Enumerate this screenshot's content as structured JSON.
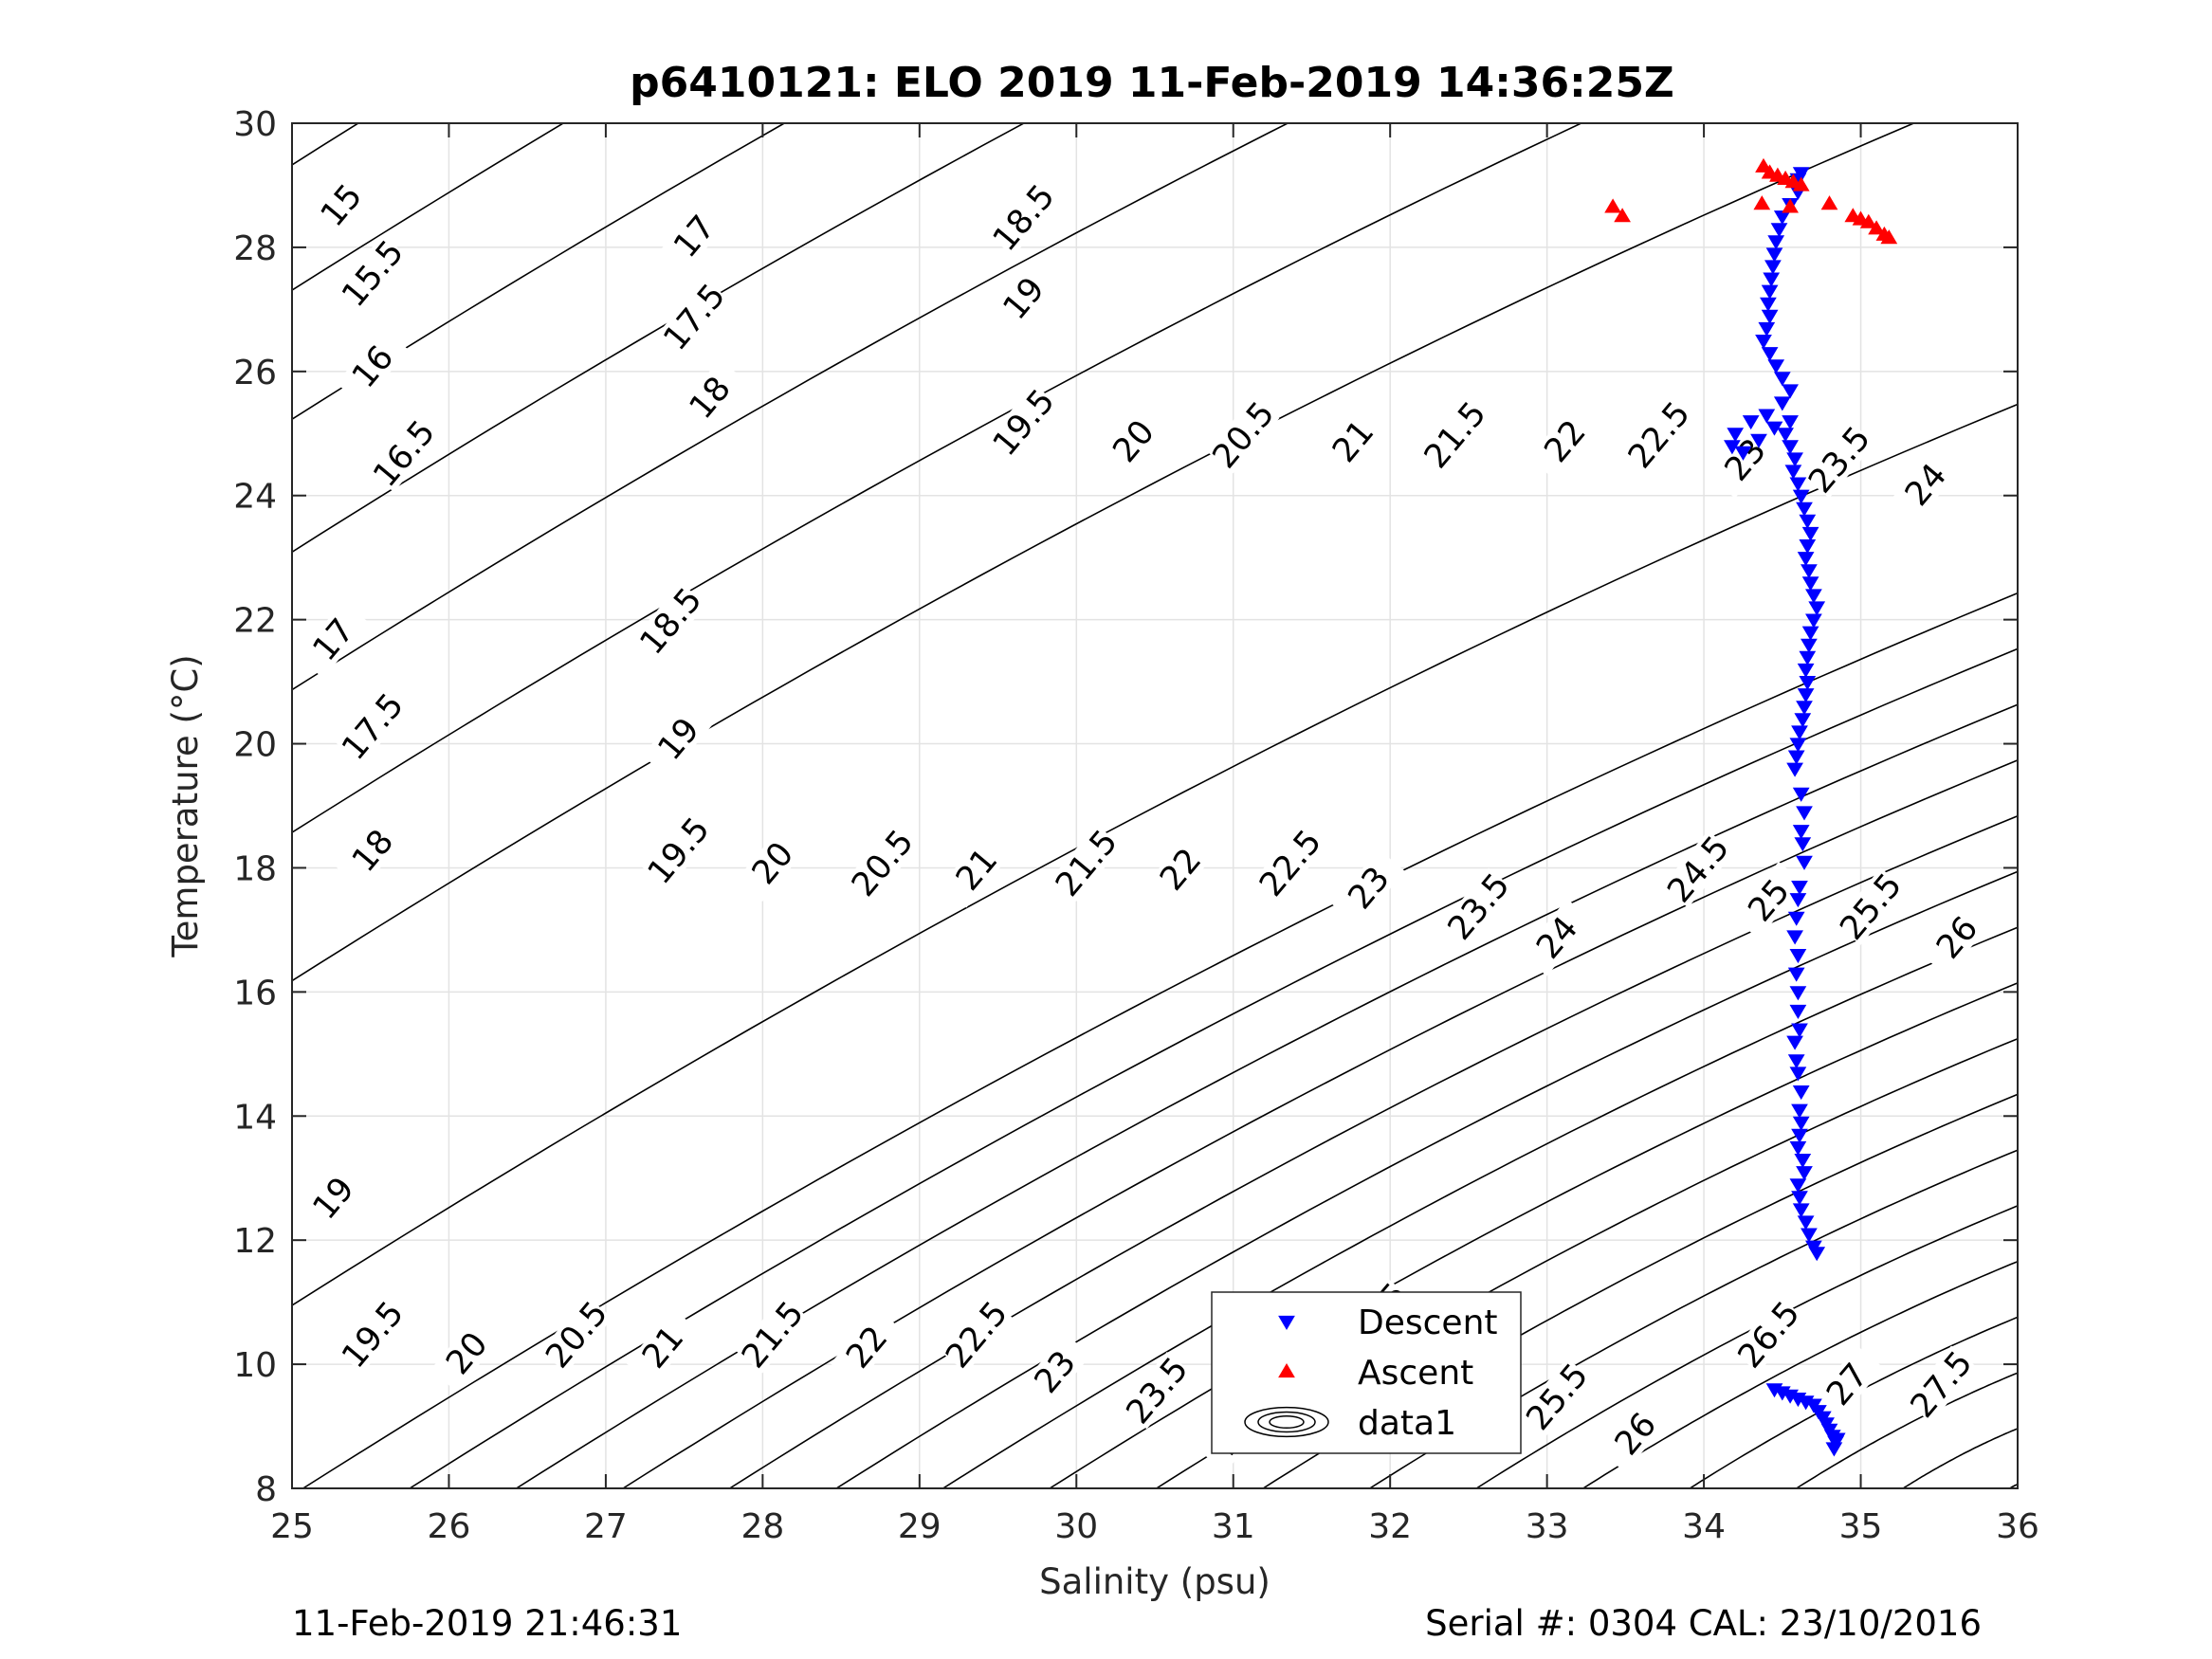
{
  "chart_data": {
    "type": "scatter",
    "title": "p6410121: ELO 2019 11-Feb-2019 14:36:25Z",
    "xlabel": "Salinity (psu)",
    "ylabel": "Temperature (°C)",
    "xlim": [
      25,
      36
    ],
    "ylim": [
      8,
      30
    ],
    "xticks": [
      "25",
      "26",
      "27",
      "28",
      "29",
      "30",
      "31",
      "32",
      "33",
      "34",
      "35",
      "36"
    ],
    "yticks": [
      "8",
      "10",
      "12",
      "14",
      "16",
      "18",
      "20",
      "22",
      "24",
      "26",
      "28",
      "30"
    ],
    "grid": true,
    "legend_placement": "bottom-center",
    "footer_left": "11-Feb-2019 21:46:31",
    "footer_right": "Serial #: 0304  CAL: 23/10/2016",
    "density_contours": {
      "name": "data1",
      "color": "#000000",
      "label_angle": -50,
      "lines": [
        {
          "value": 15,
          "x0": 25.0,
          "y0": 29.33,
          "xend": 36,
          "label_at": [
            25.35,
            28.6
          ]
        },
        {
          "value": 15.5,
          "x0": 25.0,
          "y0": 27.31,
          "xend": 36,
          "label_at": [
            25.55,
            27.5
          ]
        },
        {
          "value": 16,
          "x0": 25.0,
          "y0": 25.23,
          "xend": 36,
          "label_at": [
            25.55,
            26.0
          ]
        },
        {
          "value": 16.5,
          "x0": 25.0,
          "y0": 23.09,
          "xend": 36,
          "label_at": [
            25.75,
            24.6
          ]
        },
        {
          "value": 17,
          "x0": 25.0,
          "y0": 20.87,
          "xend": 36,
          "label_at": [
            25.3,
            21.6
          ]
        },
        {
          "value": 17.5,
          "x0": 25.0,
          "y0": 18.57,
          "xend": 36,
          "label_at": [
            25.55,
            20.2
          ]
        },
        {
          "value": 18,
          "x0": 25.0,
          "y0": 16.18,
          "xend": 36,
          "label_at": [
            25.55,
            18.2
          ]
        },
        {
          "value": 19,
          "x0": 25.0,
          "y0": 10.95,
          "xend": 36,
          "label_at": [
            25.3,
            12.6
          ]
        },
        {
          "value": 19.5,
          "x0": 25.07,
          "y0": 8.0,
          "xend": 36,
          "label_at": [
            25.55,
            10.4
          ]
        },
        {
          "value": 20,
          "x0": 25.75,
          "y0": 8.0,
          "xend": 36,
          "label_at": [
            26.15,
            10.1
          ]
        },
        {
          "value": 20.5,
          "x0": 26.43,
          "y0": 8.0,
          "xend": 36,
          "label_at": [
            26.85,
            10.4
          ]
        },
        {
          "value": 21,
          "x0": 27.11,
          "y0": 8.0,
          "xend": 36,
          "label_at": [
            27.4,
            10.2
          ]
        },
        {
          "value": 21.5,
          "x0": 27.79,
          "y0": 8.0,
          "xend": 36,
          "label_at": [
            28.1,
            10.4
          ]
        },
        {
          "value": 22,
          "x0": 28.47,
          "y0": 8.0,
          "xend": 36,
          "label_at": [
            28.7,
            10.2
          ]
        },
        {
          "value": 22.5,
          "x0": 29.15,
          "y0": 8.0,
          "xend": 36,
          "label_at": [
            29.4,
            10.4
          ]
        },
        {
          "value": 23,
          "x0": 29.83,
          "y0": 8.0,
          "xend": 36,
          "label_at": [
            29.9,
            9.8
          ]
        },
        {
          "value": 23.5,
          "x0": 30.51,
          "y0": 8.0,
          "xend": 36,
          "label_at": [
            30.55,
            9.5
          ]
        },
        {
          "value": 24,
          "x0": 31.19,
          "y0": 8.0,
          "xend": 36,
          "label_at": [
            31.05,
            8.8
          ]
        },
        {
          "value": 24.5,
          "x0": 31.87,
          "y0": 8.0,
          "xend": 36,
          "label_at": [
            31.95,
            10.7
          ]
        },
        {
          "value": 25,
          "x0": 32.55,
          "y0": 8.0,
          "xend": 36,
          "label_at": [
            32.45,
            9.8
          ]
        },
        {
          "value": 25.5,
          "x0": 33.23,
          "y0": 8.0,
          "xend": 36,
          "label_at": [
            33.1,
            9.4
          ]
        },
        {
          "value": 26,
          "x0": 33.91,
          "y0": 8.0,
          "xend": 36,
          "label_at": [
            33.6,
            8.8
          ]
        },
        {
          "value": 26.5,
          "x0": 34.59,
          "y0": 8.0,
          "xend": 36,
          "label_at": [
            34.45,
            10.4
          ]
        },
        {
          "value": 27,
          "x0": 35.27,
          "y0": 8.0,
          "xend": 36,
          "label_at": [
            34.95,
            9.6
          ]
        },
        {
          "value": 27.5,
          "x0": 35.95,
          "y0": 8.0,
          "xend": 36,
          "label_at": [
            35.55,
            9.6
          ]
        }
      ],
      "extra_labels": [
        {
          "text": "17",
          "at": [
            27.6,
            28.1
          ]
        },
        {
          "text": "17.5",
          "at": [
            27.6,
            26.8
          ]
        },
        {
          "text": "18",
          "at": [
            27.7,
            25.5
          ]
        },
        {
          "text": "18.5",
          "at": [
            29.7,
            28.4
          ]
        },
        {
          "text": "19",
          "at": [
            29.7,
            27.1
          ]
        },
        {
          "text": "19.5",
          "at": [
            29.7,
            25.1
          ]
        },
        {
          "text": "20",
          "at": [
            30.4,
            24.8
          ]
        },
        {
          "text": "20.5",
          "at": [
            31.1,
            24.9
          ]
        },
        {
          "text": "21",
          "at": [
            31.8,
            24.8
          ]
        },
        {
          "text": "21.5",
          "at": [
            32.45,
            24.9
          ]
        },
        {
          "text": "22",
          "at": [
            33.15,
            24.8
          ]
        },
        {
          "text": "22.5",
          "at": [
            33.75,
            24.9
          ]
        },
        {
          "text": "23",
          "at": [
            34.3,
            24.5
          ]
        },
        {
          "text": "23.5",
          "at": [
            34.9,
            24.5
          ]
        },
        {
          "text": "24",
          "at": [
            35.45,
            24.1
          ]
        },
        {
          "text": "18.5",
          "at": [
            27.45,
            21.9
          ]
        },
        {
          "text": "19",
          "at": [
            27.5,
            20.0
          ]
        },
        {
          "text": "19.5",
          "at": [
            27.5,
            18.2
          ]
        },
        {
          "text": "20",
          "at": [
            28.1,
            18.0
          ]
        },
        {
          "text": "20.5",
          "at": [
            28.8,
            18.0
          ]
        },
        {
          "text": "21",
          "at": [
            29.4,
            17.9
          ]
        },
        {
          "text": "21.5",
          "at": [
            30.1,
            18.0
          ]
        },
        {
          "text": "22",
          "at": [
            30.7,
            17.9
          ]
        },
        {
          "text": "22.5",
          "at": [
            31.4,
            18.0
          ]
        },
        {
          "text": "23",
          "at": [
            31.9,
            17.6
          ]
        },
        {
          "text": "23.5",
          "at": [
            32.6,
            17.3
          ]
        },
        {
          "text": "24",
          "at": [
            33.1,
            16.8
          ]
        },
        {
          "text": "24.5",
          "at": [
            34.0,
            17.9
          ]
        },
        {
          "text": "25",
          "at": [
            34.45,
            17.4
          ]
        },
        {
          "text": "25.5",
          "at": [
            35.1,
            17.3
          ]
        },
        {
          "text": "26",
          "at": [
            35.65,
            16.8
          ]
        }
      ]
    },
    "series": [
      {
        "name": "Descent",
        "color": "#0000ff",
        "marker": "triangle-down",
        "points": [
          [
            34.62,
            29.2
          ],
          [
            34.6,
            29.1
          ],
          [
            34.58,
            29.0
          ],
          [
            34.6,
            28.9
          ],
          [
            34.55,
            28.7
          ],
          [
            34.5,
            28.5
          ],
          [
            34.48,
            28.3
          ],
          [
            34.46,
            28.1
          ],
          [
            34.45,
            27.9
          ],
          [
            34.44,
            27.7
          ],
          [
            34.43,
            27.5
          ],
          [
            34.42,
            27.3
          ],
          [
            34.41,
            27.1
          ],
          [
            34.42,
            26.9
          ],
          [
            34.4,
            26.7
          ],
          [
            34.38,
            26.5
          ],
          [
            34.42,
            26.3
          ],
          [
            34.46,
            26.1
          ],
          [
            34.5,
            25.9
          ],
          [
            34.55,
            25.7
          ],
          [
            34.5,
            25.5
          ],
          [
            34.4,
            25.3
          ],
          [
            34.3,
            25.2
          ],
          [
            34.2,
            25.0
          ],
          [
            34.18,
            24.8
          ],
          [
            34.25,
            24.7
          ],
          [
            34.35,
            24.9
          ],
          [
            34.45,
            25.1
          ],
          [
            34.55,
            25.2
          ],
          [
            34.52,
            25.0
          ],
          [
            34.55,
            24.8
          ],
          [
            34.58,
            24.6
          ],
          [
            34.57,
            24.4
          ],
          [
            34.6,
            24.2
          ],
          [
            34.62,
            24.0
          ],
          [
            34.64,
            23.8
          ],
          [
            34.66,
            23.6
          ],
          [
            34.68,
            23.4
          ],
          [
            34.66,
            23.2
          ],
          [
            34.65,
            23.0
          ],
          [
            34.67,
            22.8
          ],
          [
            34.68,
            22.6
          ],
          [
            34.7,
            22.4
          ],
          [
            34.72,
            22.2
          ],
          [
            34.7,
            22.0
          ],
          [
            34.68,
            21.8
          ],
          [
            34.67,
            21.6
          ],
          [
            34.66,
            21.4
          ],
          [
            34.65,
            21.2
          ],
          [
            34.66,
            21.0
          ],
          [
            34.65,
            20.8
          ],
          [
            34.64,
            20.6
          ],
          [
            34.63,
            20.4
          ],
          [
            34.61,
            20.2
          ],
          [
            34.6,
            20.0
          ],
          [
            34.59,
            19.8
          ],
          [
            34.58,
            19.6
          ],
          [
            34.62,
            19.2
          ],
          [
            34.64,
            18.9
          ],
          [
            34.62,
            18.6
          ],
          [
            34.63,
            18.4
          ],
          [
            34.64,
            18.1
          ],
          [
            34.61,
            17.7
          ],
          [
            34.6,
            17.5
          ],
          [
            34.59,
            17.2
          ],
          [
            34.58,
            16.9
          ],
          [
            34.6,
            16.6
          ],
          [
            34.59,
            16.3
          ],
          [
            34.6,
            16.0
          ],
          [
            34.6,
            15.7
          ],
          [
            34.61,
            15.4
          ],
          [
            34.58,
            15.2
          ],
          [
            34.59,
            14.9
          ],
          [
            34.6,
            14.7
          ],
          [
            34.62,
            14.4
          ],
          [
            34.61,
            14.1
          ],
          [
            34.62,
            13.9
          ],
          [
            34.61,
            13.7
          ],
          [
            34.6,
            13.5
          ],
          [
            34.63,
            13.3
          ],
          [
            34.64,
            13.1
          ],
          [
            34.6,
            12.9
          ],
          [
            34.61,
            12.7
          ],
          [
            34.62,
            12.5
          ],
          [
            34.65,
            12.3
          ],
          [
            34.67,
            12.1
          ],
          [
            34.7,
            11.9
          ],
          [
            34.72,
            11.8
          ],
          [
            34.45,
            9.6
          ],
          [
            34.5,
            9.55
          ],
          [
            34.55,
            9.5
          ],
          [
            34.6,
            9.45
          ],
          [
            34.65,
            9.4
          ],
          [
            34.7,
            9.35
          ],
          [
            34.73,
            9.25
          ],
          [
            34.76,
            9.15
          ],
          [
            34.78,
            9.05
          ],
          [
            34.8,
            8.95
          ],
          [
            34.82,
            8.85
          ],
          [
            34.84,
            8.75
          ],
          [
            34.83,
            8.65
          ],
          [
            34.85,
            8.8
          ]
        ]
      },
      {
        "name": "Ascent",
        "color": "#ff0000",
        "marker": "triangle-up",
        "points": [
          [
            34.38,
            29.3
          ],
          [
            34.42,
            29.2
          ],
          [
            34.47,
            29.15
          ],
          [
            34.52,
            29.1
          ],
          [
            34.57,
            29.05
          ],
          [
            34.62,
            29.0
          ],
          [
            34.37,
            28.7
          ],
          [
            34.55,
            28.65
          ],
          [
            34.8,
            28.7
          ],
          [
            33.42,
            28.65
          ],
          [
            33.48,
            28.5
          ],
          [
            34.95,
            28.5
          ],
          [
            35.0,
            28.45
          ],
          [
            35.05,
            28.4
          ],
          [
            35.1,
            28.3
          ],
          [
            35.15,
            28.2
          ],
          [
            35.18,
            28.15
          ]
        ]
      }
    ]
  }
}
